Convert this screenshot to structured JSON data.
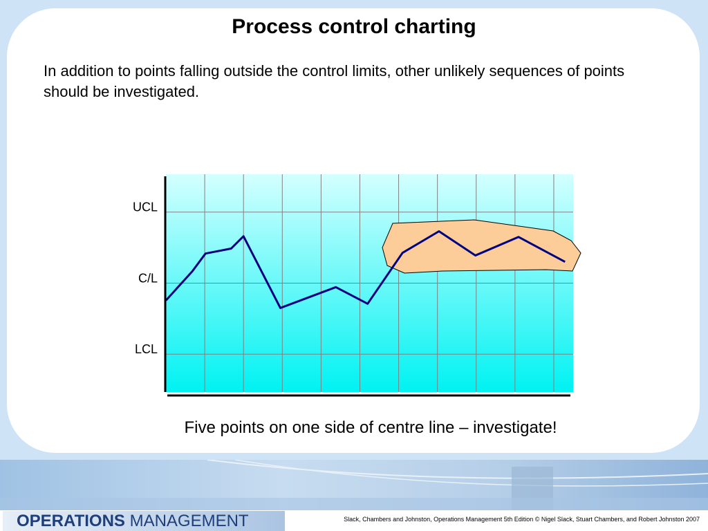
{
  "title": "Process control charting",
  "intro": "In addition to points falling outside the control limits, other unlikely sequences of points should be investigated.",
  "chart_data": {
    "type": "line",
    "x": [
      0,
      0.68,
      1.02,
      1.68,
      2,
      2.95,
      4.38,
      5.2,
      6.1,
      7.04,
      7.98,
      9.09,
      10.29
    ],
    "values": [
      -0.73,
      0.5,
      1.25,
      1.46,
      1.98,
      -1.05,
      -0.17,
      -0.87,
      1.28,
      2.19,
      1.17,
      1.95,
      0.9
    ],
    "color": "#000080",
    "xlim": [
      0,
      10.5
    ],
    "xticks": [
      1,
      2,
      3,
      4,
      5,
      6,
      7,
      8,
      9,
      10
    ],
    "ylim": [
      -4.6,
      4.6
    ],
    "yticks": [
      {
        "value": 3,
        "label": "UCL"
      },
      {
        "value": 0,
        "label": "C/L"
      },
      {
        "value": -3,
        "label": "LCL"
      }
    ],
    "grid": true
  },
  "caption": "Five points on one side of centre line – investigate!",
  "footer": {
    "logo_bold": "OPERATIONS",
    "logo_rest": "MANAGEMENT",
    "citation": "Slack, Chambers and Johnston, Operations Management 5th Edition © Nigel Slack, Stuart Chambers, and Robert Johnston 2007"
  }
}
